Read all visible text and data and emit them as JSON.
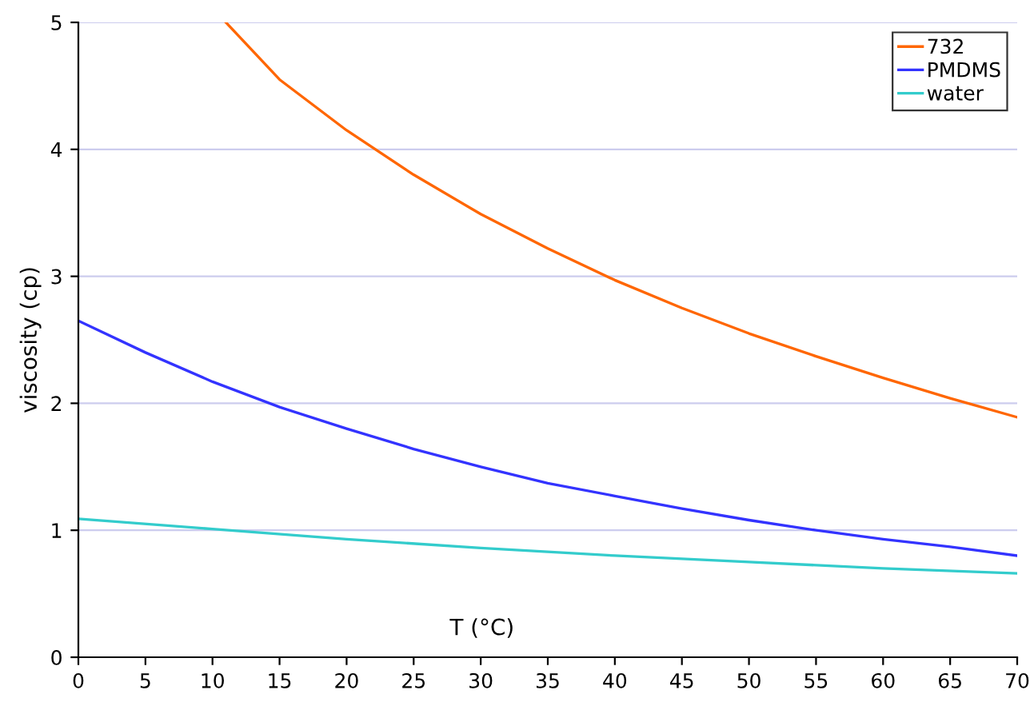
{
  "chart_data": {
    "type": "line",
    "xlabel": "T (°C)",
    "ylabel": "viscosity (cp)",
    "xlim": [
      0,
      70
    ],
    "ylim": [
      0,
      5
    ],
    "xticks": [
      0,
      5,
      10,
      15,
      20,
      25,
      30,
      35,
      40,
      45,
      50,
      55,
      60,
      65,
      70
    ],
    "yticks": [
      0,
      1,
      2,
      3,
      4,
      5
    ],
    "grid": "y",
    "legend": "top right",
    "marker": "none",
    "line_style": "solid",
    "series": [
      {
        "name": "732",
        "color": "#ff6600",
        "x": [
          11,
          15,
          20,
          25,
          30,
          35,
          40,
          45,
          50,
          55,
          60,
          65,
          70
        ],
        "values": [
          5.0,
          4.55,
          4.15,
          3.8,
          3.49,
          3.22,
          2.97,
          2.75,
          2.55,
          2.37,
          2.2,
          2.04,
          1.89
        ]
      },
      {
        "name": "PMDMS",
        "color": "#3333ff",
        "x": [
          0,
          5,
          10,
          15,
          20,
          25,
          30,
          35,
          40,
          45,
          50,
          55,
          60,
          65,
          70
        ],
        "values": [
          2.65,
          2.4,
          2.17,
          1.97,
          1.8,
          1.64,
          1.5,
          1.37,
          1.27,
          1.17,
          1.08,
          1.0,
          0.93,
          0.87,
          0.8
        ]
      },
      {
        "name": "water",
        "color": "#33cccc",
        "x": [
          0,
          10,
          20,
          30,
          40,
          50,
          60,
          70
        ],
        "values": [
          1.09,
          1.01,
          0.93,
          0.86,
          0.8,
          0.75,
          0.7,
          0.66
        ]
      }
    ]
  }
}
